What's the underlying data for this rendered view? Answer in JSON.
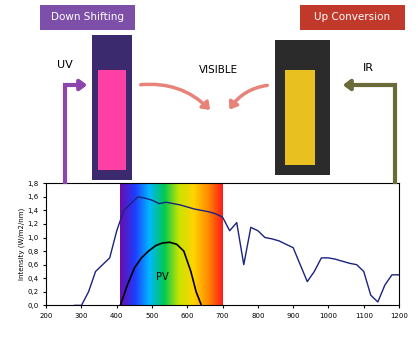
{
  "chart_data": {
    "type": "line",
    "y_label": "Intensity (W/m2/nm)",
    "xlim": [
      200,
      1200
    ],
    "xticks": [
      200,
      300,
      400,
      500,
      600,
      700,
      800,
      900,
      1000,
      1100,
      1200
    ],
    "ylim": [
      0,
      1.8
    ],
    "yticks": [
      {
        "value": 0,
        "label": "0,0"
      },
      {
        "value": 0.2,
        "label": "0,2"
      },
      {
        "value": 0.4,
        "label": "0,4"
      },
      {
        "value": 0.6,
        "label": "0,6"
      },
      {
        "value": 0.8,
        "label": "0,8"
      },
      {
        "value": 1.0,
        "label": "1,0"
      },
      {
        "value": 1.2,
        "label": "1,2"
      },
      {
        "value": 1.4,
        "label": "1,4"
      },
      {
        "value": 1.6,
        "label": "1,6"
      },
      {
        "value": 1.8,
        "label": "1,8"
      }
    ],
    "grid": false,
    "visible_range": [
      410,
      700
    ],
    "series": [
      {
        "color": "#1a237e",
        "x": [
          280,
          300,
          320,
          340,
          360,
          380,
          400,
          420,
          440,
          460,
          480,
          500,
          520,
          540,
          560,
          580,
          600,
          620,
          640,
          660,
          680,
          700,
          720,
          740,
          760,
          780,
          800,
          820,
          840,
          860,
          880,
          900,
          920,
          940,
          960,
          980,
          1000,
          1020,
          1040,
          1060,
          1080,
          1100,
          1120,
          1140,
          1160,
          1180,
          1200
        ],
        "values": [
          0.0,
          0.0,
          0.2,
          0.5,
          0.6,
          0.7,
          1.1,
          1.4,
          1.5,
          1.6,
          1.58,
          1.55,
          1.5,
          1.52,
          1.5,
          1.48,
          1.45,
          1.42,
          1.4,
          1.38,
          1.35,
          1.3,
          1.1,
          1.22,
          0.6,
          1.15,
          1.1,
          1.0,
          0.98,
          0.95,
          0.9,
          0.85,
          0.6,
          0.35,
          0.5,
          0.7,
          0.7,
          0.68,
          0.65,
          0.62,
          0.6,
          0.5,
          0.15,
          0.05,
          0.3,
          0.45,
          0.45
        ]
      },
      {
        "name": "PV",
        "color": "#000000",
        "x": [
          410,
          430,
          450,
          470,
          490,
          510,
          530,
          550,
          570,
          590,
          610,
          625,
          640
        ],
        "values": [
          0.0,
          0.3,
          0.55,
          0.7,
          0.8,
          0.88,
          0.92,
          0.93,
          0.9,
          0.8,
          0.5,
          0.2,
          0.0
        ]
      }
    ],
    "annotations": {
      "down": "Down Shifting",
      "up": "Up Conversion",
      "uv": "UV",
      "visible": "VISIBLE",
      "ir": "IR"
    }
  }
}
